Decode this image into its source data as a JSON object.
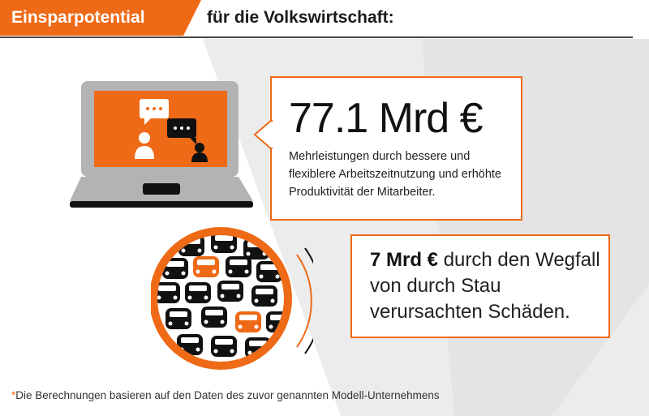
{
  "header": {
    "tag": "Einsparpotential",
    "title": "für die Volkswirtschaft:"
  },
  "savings_work": {
    "amount": "77.1 Mrd €",
    "description": "Mehrleistungen durch bessere und flexiblere Arbeitszeitnutzung und erhöhte Produktivität der Mitarbeiter."
  },
  "savings_traffic": {
    "amount": "7 Mrd €",
    "description": "durch den Wegfall von durch Stau verursachten Schäden."
  },
  "footnote": {
    "marker": "*",
    "text": "Die Berechnungen basieren auf den Daten des zuvor genannten Modell-Unternehmens"
  },
  "colors": {
    "accent": "#ee6a16",
    "laptop_gray": "#b3b3b3",
    "dark": "#111111"
  },
  "icons": [
    "laptop-chat-icon",
    "traffic-jam-icon"
  ]
}
